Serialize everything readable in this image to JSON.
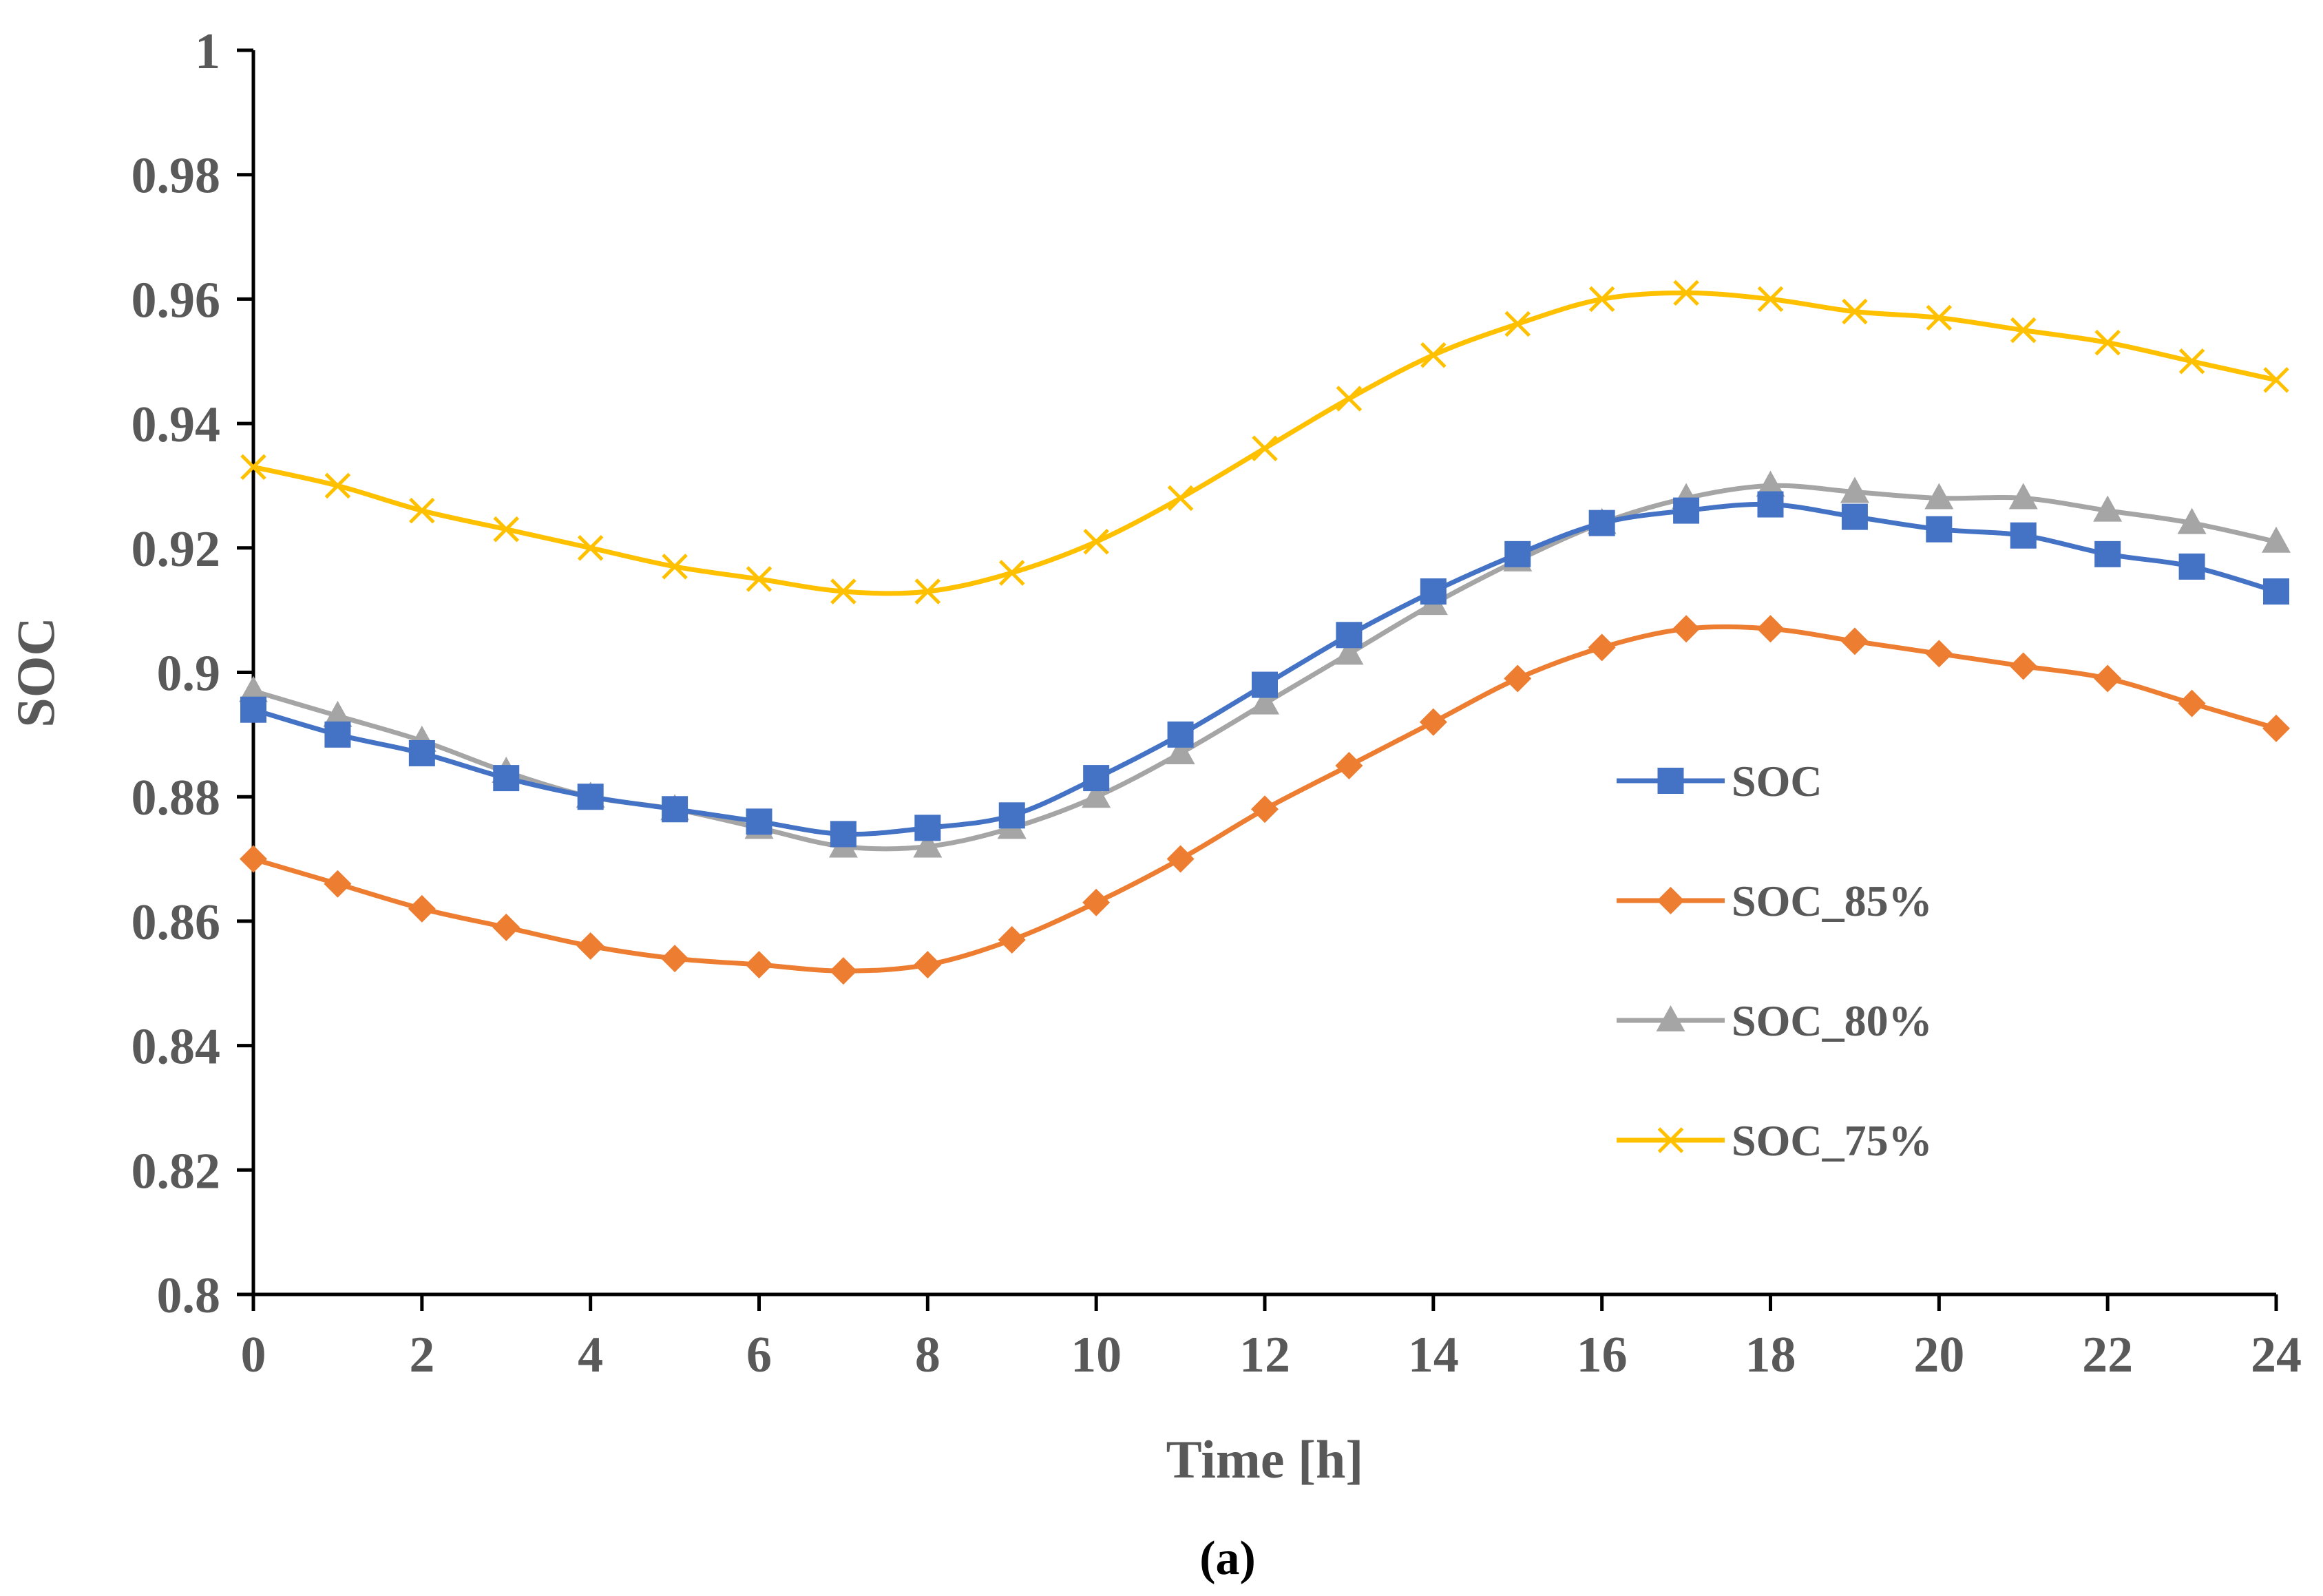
{
  "chart_data": {
    "type": "line",
    "title": "",
    "xlabel": "Time [h]",
    "ylabel": "SOC",
    "caption": "(a)",
    "xlim": [
      0,
      24
    ],
    "ylim": [
      0.8,
      1.0
    ],
    "x_ticks": [
      0,
      2,
      4,
      6,
      8,
      10,
      12,
      14,
      16,
      18,
      20,
      22,
      24
    ],
    "x_tick_labels": [
      "0",
      "2",
      "4",
      "6",
      "8",
      "10",
      "12",
      "14",
      "16",
      "18",
      "20",
      "22",
      "24"
    ],
    "y_ticks": [
      0.8,
      0.82,
      0.84,
      0.86,
      0.88,
      0.9,
      0.92,
      0.94,
      0.96,
      0.98,
      1.0
    ],
    "y_tick_labels": [
      "0.8",
      "0.82",
      "0.84",
      "0.86",
      "0.88",
      "0.9",
      "0.92",
      "0.94",
      "0.96",
      "0.98",
      "1"
    ],
    "grid": false,
    "legend_position": "center-right",
    "x": [
      0,
      1,
      2,
      3,
      4,
      5,
      6,
      7,
      8,
      9,
      10,
      11,
      12,
      13,
      14,
      15,
      16,
      17,
      18,
      19,
      20,
      21,
      22,
      23,
      24
    ],
    "series": [
      {
        "name": "SOC",
        "color": "#4472C4",
        "marker": "square",
        "values": [
          0.894,
          0.89,
          0.887,
          0.883,
          0.88,
          0.878,
          0.876,
          0.874,
          0.875,
          0.877,
          0.883,
          0.89,
          0.898,
          0.906,
          0.913,
          0.919,
          0.924,
          0.926,
          0.927,
          0.925,
          0.923,
          0.922,
          0.919,
          0.917,
          0.913
        ]
      },
      {
        "name": "SOC_85%",
        "color": "#ED7D31",
        "marker": "diamond",
        "values": [
          0.87,
          0.866,
          0.862,
          0.859,
          0.856,
          0.854,
          0.853,
          0.852,
          0.853,
          0.857,
          0.863,
          0.87,
          0.878,
          0.885,
          0.892,
          0.899,
          0.904,
          0.907,
          0.907,
          0.905,
          0.903,
          0.901,
          0.899,
          0.895,
          0.891
        ]
      },
      {
        "name": "SOC_80%",
        "color": "#A5A5A5",
        "marker": "triangle",
        "values": [
          0.897,
          0.893,
          0.889,
          0.884,
          0.88,
          0.878,
          0.875,
          0.872,
          0.872,
          0.875,
          0.88,
          0.887,
          0.895,
          0.903,
          0.911,
          0.918,
          0.924,
          0.928,
          0.93,
          0.929,
          0.928,
          0.928,
          0.926,
          0.924,
          0.921
        ]
      },
      {
        "name": "SOC_75%",
        "color": "#FFC000",
        "marker": "x",
        "values": [
          0.933,
          0.93,
          0.926,
          0.923,
          0.92,
          0.917,
          0.915,
          0.913,
          0.913,
          0.916,
          0.921,
          0.928,
          0.936,
          0.944,
          0.951,
          0.956,
          0.96,
          0.961,
          0.96,
          0.958,
          0.957,
          0.955,
          0.953,
          0.95,
          0.947
        ]
      }
    ]
  }
}
